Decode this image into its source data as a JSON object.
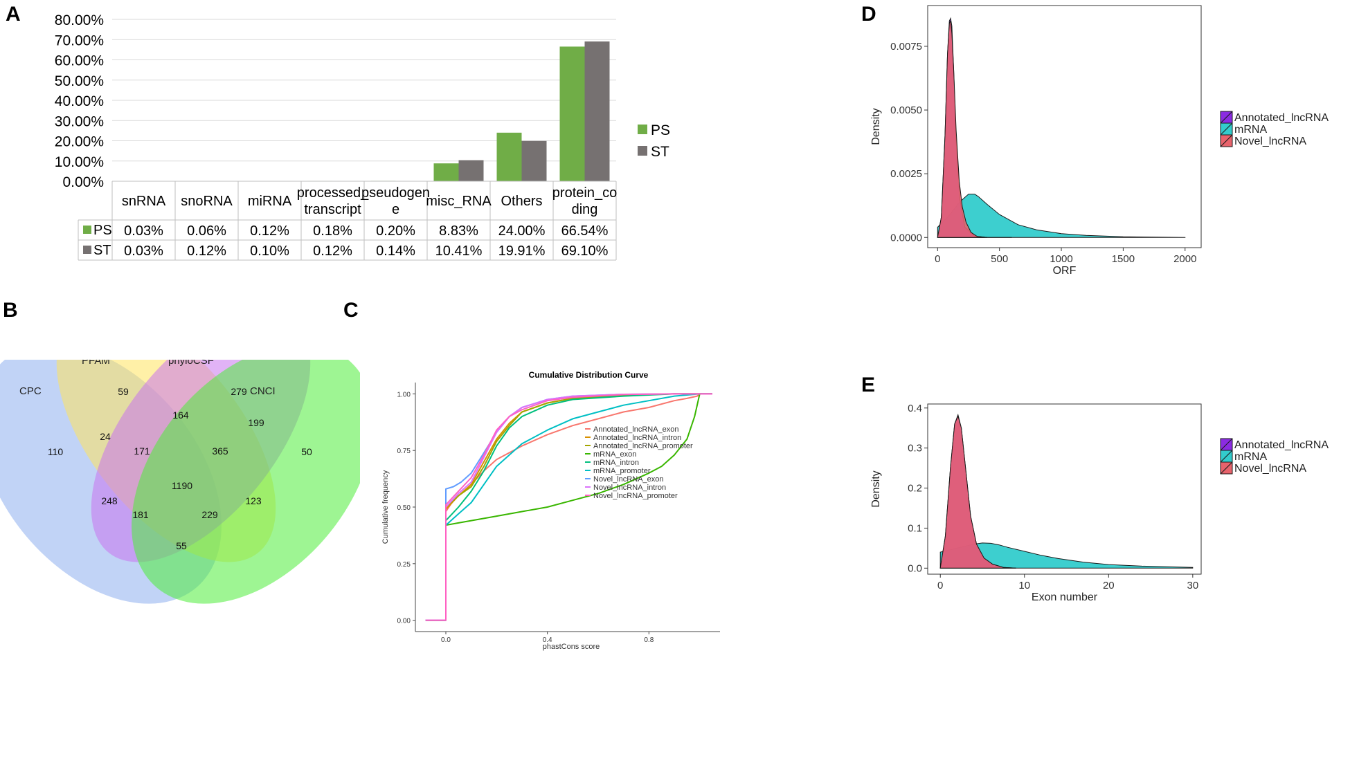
{
  "panel_labels": [
    "A",
    "B",
    "C",
    "D",
    "E"
  ],
  "chart_data": [
    {
      "panel": "A",
      "type": "bar",
      "categories": [
        "snRNA",
        "snoRNA",
        "miRNA",
        "processed_transcript",
        "pseudogene",
        "misc_RNA",
        "Others",
        "protein_coding"
      ],
      "category_lines": [
        [
          "snRNA"
        ],
        [
          "snoRNA"
        ],
        [
          "miRNA"
        ],
        [
          "processed_",
          "transcript"
        ],
        [
          "pseudogen",
          "e"
        ],
        [
          "misc_RNA"
        ],
        [
          "Others"
        ],
        [
          "protein_co",
          "ding"
        ]
      ],
      "series": [
        {
          "name": "PS",
          "color": "#70ad47",
          "values": [
            0.03,
            0.06,
            0.12,
            0.18,
            0.2,
            8.83,
            24.0,
            66.54
          ],
          "labels": [
            "0.03%",
            "0.06%",
            "0.12%",
            "0.18%",
            "0.20%",
            "8.83%",
            "24.00%",
            "66.54%"
          ]
        },
        {
          "name": "ST",
          "color": "#767171",
          "values": [
            0.03,
            0.12,
            0.1,
            0.12,
            0.14,
            10.41,
            19.91,
            69.1
          ],
          "labels": [
            "0.03%",
            "0.12%",
            "0.10%",
            "0.12%",
            "0.14%",
            "10.41%",
            "19.91%",
            "69.10%"
          ]
        }
      ],
      "ylim": [
        0,
        80
      ],
      "yticks": [
        "0.00%",
        "10.00%",
        "20.00%",
        "30.00%",
        "40.00%",
        "50.00%",
        "60.00%",
        "70.00%",
        "80.00%"
      ],
      "legend": "right"
    },
    {
      "panel": "B",
      "type": "venn",
      "sets": [
        {
          "name": "CPC",
          "color": "#8eaeee"
        },
        {
          "name": "PFAM",
          "color": "#ffe35f"
        },
        {
          "name": "phyloCSF",
          "color": "#c875ef"
        },
        {
          "name": "CNCI",
          "color": "#4eec3a"
        }
      ],
      "regions": [
        {
          "sets": "CPC",
          "value": "110"
        },
        {
          "sets": "PFAM",
          "value": "59"
        },
        {
          "sets": "phyloCSF",
          "value": "279"
        },
        {
          "sets": "CNCI",
          "value": "50"
        },
        {
          "sets": "CPC&PFAM",
          "value": "24"
        },
        {
          "sets": "PFAM&phyloCSF",
          "value": "164"
        },
        {
          "sets": "phyloCSF&CNCI",
          "value": "199"
        },
        {
          "sets": "CPC&PFAM&phyloCSF",
          "value": "171"
        },
        {
          "sets": "PFAM&phyloCSF&CNCI",
          "value": "365"
        },
        {
          "sets": "all",
          "value": "1190"
        },
        {
          "sets": "CPC&phyloCSF",
          "value": "248"
        },
        {
          "sets": "PFAM&CNCI",
          "value": "123"
        },
        {
          "sets": "CPC&phyloCSF&CNCI",
          "value": "181"
        },
        {
          "sets": "CPC&PFAM&CNCI",
          "value": "229"
        },
        {
          "sets": "CPC&CNCI",
          "value": "55"
        }
      ]
    },
    {
      "panel": "C",
      "type": "line",
      "title": "Cumulative Distribution Curve",
      "xlabel": "phastCons score",
      "ylabel": "Cumulative frequency",
      "xlim": [
        -0.12,
        1.08
      ],
      "ylim": [
        -0.05,
        1.05
      ],
      "xticks": [
        {
          "v": 0.0,
          "t": "0.0"
        },
        {
          "v": 0.4,
          "t": "0.4"
        },
        {
          "v": 0.8,
          "t": "0.8"
        }
      ],
      "yticks": [
        {
          "v": 0.0,
          "t": "0.00"
        },
        {
          "v": 0.25,
          "t": "0.25"
        },
        {
          "v": 0.5,
          "t": "0.50"
        },
        {
          "v": 0.75,
          "t": "0.75"
        },
        {
          "v": 1.0,
          "t": "1.00"
        }
      ],
      "series": [
        {
          "name": "Annotated_lncRNA_exon",
          "color": "#f8766d",
          "x": [
            -0.08,
            0,
            0,
            0.03,
            0.07,
            0.1,
            0.15,
            0.2,
            0.3,
            0.4,
            0.5,
            0.6,
            0.7,
            0.8,
            0.9,
            0.95,
            0.99,
            1.0,
            1.05
          ],
          "y": [
            0,
            0,
            0.48,
            0.53,
            0.57,
            0.6,
            0.66,
            0.71,
            0.77,
            0.82,
            0.86,
            0.89,
            0.92,
            0.94,
            0.97,
            0.98,
            0.99,
            1.0,
            1.0
          ]
        },
        {
          "name": "Annotated_lncRNA_intron",
          "color": "#d89000",
          "x": [
            -0.08,
            0,
            0,
            0.05,
            0.1,
            0.15,
            0.2,
            0.25,
            0.3,
            0.4,
            0.5,
            0.7,
            0.9,
            1.0,
            1.05
          ],
          "y": [
            0,
            0,
            0.49,
            0.55,
            0.6,
            0.7,
            0.8,
            0.87,
            0.92,
            0.96,
            0.98,
            0.995,
            1.0,
            1.0,
            1.0
          ]
        },
        {
          "name": "Annotated_lncRNA_promoter",
          "color": "#a3a500",
          "x": [
            -0.08,
            0,
            0,
            0.05,
            0.1,
            0.15,
            0.2,
            0.25,
            0.3,
            0.4,
            0.5,
            0.7,
            0.9,
            1.0,
            1.05
          ],
          "y": [
            0,
            0,
            0.5,
            0.55,
            0.59,
            0.68,
            0.79,
            0.86,
            0.92,
            0.96,
            0.98,
            0.995,
            1.0,
            1.0,
            1.0
          ]
        },
        {
          "name": "mRNA_exon",
          "color": "#39b600",
          "x": [
            -0.08,
            0,
            0,
            0.05,
            0.1,
            0.2,
            0.3,
            0.4,
            0.5,
            0.6,
            0.7,
            0.8,
            0.85,
            0.9,
            0.95,
            0.98,
            1.0,
            1.05
          ],
          "y": [
            0,
            0,
            0.42,
            0.43,
            0.44,
            0.46,
            0.48,
            0.5,
            0.53,
            0.56,
            0.6,
            0.65,
            0.68,
            0.73,
            0.8,
            0.9,
            1.0,
            1.0
          ]
        },
        {
          "name": "mRNA_intron",
          "color": "#00bf7d",
          "x": [
            -0.08,
            0,
            0,
            0.05,
            0.1,
            0.15,
            0.2,
            0.25,
            0.3,
            0.4,
            0.5,
            0.7,
            0.9,
            1.0,
            1.05
          ],
          "y": [
            0,
            0,
            0.44,
            0.5,
            0.57,
            0.66,
            0.77,
            0.85,
            0.9,
            0.95,
            0.975,
            0.99,
            1.0,
            1.0,
            1.0
          ]
        },
        {
          "name": "mRNA_promoter",
          "color": "#00bfc4",
          "x": [
            -0.08,
            0,
            0,
            0.05,
            0.1,
            0.15,
            0.2,
            0.3,
            0.4,
            0.5,
            0.6,
            0.7,
            0.8,
            0.9,
            1.0,
            1.05
          ],
          "y": [
            0,
            0,
            0.42,
            0.47,
            0.52,
            0.6,
            0.68,
            0.78,
            0.84,
            0.89,
            0.92,
            0.95,
            0.97,
            0.99,
            1.0,
            1.0
          ]
        },
        {
          "name": "Novel_lncRNA_exon",
          "color": "#619cff",
          "x": [
            -0.08,
            0,
            0,
            0.03,
            0.06,
            0.1,
            0.15,
            0.2,
            0.25,
            0.3,
            0.4,
            0.5,
            0.7,
            0.9,
            1.0,
            1.05
          ],
          "y": [
            0,
            0,
            0.58,
            0.59,
            0.61,
            0.65,
            0.74,
            0.83,
            0.9,
            0.94,
            0.975,
            0.99,
            0.998,
            1.0,
            1.0,
            1.0
          ]
        },
        {
          "name": "Novel_lncRNA_intron",
          "color": "#db72fb",
          "x": [
            -0.08,
            0,
            0,
            0.05,
            0.1,
            0.15,
            0.2,
            0.25,
            0.3,
            0.4,
            0.5,
            0.7,
            0.9,
            1.0,
            1.05
          ],
          "y": [
            0,
            0,
            0.5,
            0.56,
            0.61,
            0.72,
            0.83,
            0.9,
            0.94,
            0.975,
            0.99,
            0.998,
            1.0,
            1.0,
            1.0
          ]
        },
        {
          "name": "Novel_lncRNA_promoter",
          "color": "#ff61c3",
          "x": [
            -0.08,
            0,
            0,
            0.05,
            0.1,
            0.15,
            0.2,
            0.25,
            0.3,
            0.4,
            0.5,
            0.7,
            0.9,
            1.0,
            1.05
          ],
          "y": [
            0,
            0,
            0.51,
            0.57,
            0.63,
            0.73,
            0.84,
            0.9,
            0.93,
            0.97,
            0.985,
            0.997,
            1.0,
            1.0,
            1.0
          ]
        }
      ]
    },
    {
      "panel": "D",
      "type": "area",
      "xlabel": "ORF",
      "ylabel": "Density",
      "xlim": [
        -80,
        2130
      ],
      "ylim": [
        -0.0004,
        0.0091
      ],
      "xticks": [
        {
          "v": 0,
          "t": "0"
        },
        {
          "v": 500,
          "t": "500"
        },
        {
          "v": 1000,
          "t": "1000"
        },
        {
          "v": 1500,
          "t": "1500"
        },
        {
          "v": 2000,
          "t": "2000"
        }
      ],
      "yticks": [
        {
          "v": 0,
          "t": "0.0000"
        },
        {
          "v": 0.0025,
          "t": "0.0025"
        },
        {
          "v": 0.005,
          "t": "0.0050"
        },
        {
          "v": 0.0075,
          "t": "0.0075"
        }
      ],
      "series": [
        {
          "name": "Annotated_lncRNA",
          "color": "#8b2be2",
          "x": [
            0,
            30,
            60,
            80,
            95,
            105,
            115,
            130,
            150,
            180,
            220,
            300,
            400,
            600
          ],
          "y": [
            0,
            0.0008,
            0.004,
            0.0072,
            0.0085,
            0.0086,
            0.0083,
            0.0066,
            0.0038,
            0.0015,
            0.0004,
            5e-05,
            0,
            0
          ]
        },
        {
          "name": "mRNA",
          "color": "#33cccc",
          "x": [
            0,
            40,
            100,
            180,
            250,
            300,
            330,
            400,
            500,
            650,
            800,
            1000,
            1200,
            1500,
            1800,
            2000
          ],
          "y": [
            0.0004,
            0.0006,
            0.0009,
            0.0014,
            0.0017,
            0.0017,
            0.0016,
            0.0013,
            0.0009,
            0.0005,
            0.0003,
            0.00015,
            8e-05,
            3e-05,
            1e-05,
            3e-06
          ]
        },
        {
          "name": "Novel_lncRNA",
          "color": "#e8636c",
          "x": [
            0,
            30,
            60,
            80,
            95,
            105,
            115,
            130,
            150,
            175,
            200,
            230,
            270,
            320,
            400
          ],
          "y": [
            0,
            0.0008,
            0.004,
            0.0072,
            0.0084,
            0.0085,
            0.008,
            0.0066,
            0.0042,
            0.0022,
            0.0012,
            0.0006,
            0.0002,
            4e-05,
            0
          ]
        }
      ],
      "legend": "right"
    },
    {
      "panel": "E",
      "type": "area",
      "xlabel": "Exon number",
      "ylabel": "Density",
      "xlim": [
        -1.5,
        31
      ],
      "ylim": [
        -0.015,
        0.41
      ],
      "xticks": [
        {
          "v": 0,
          "t": "0"
        },
        {
          "v": 10,
          "t": "10"
        },
        {
          "v": 20,
          "t": "20"
        },
        {
          "v": 30,
          "t": "30"
        }
      ],
      "yticks": [
        {
          "v": 0,
          "t": "0.0"
        },
        {
          "v": 0.1,
          "t": "0.1"
        },
        {
          "v": 0.2,
          "t": "0.2"
        },
        {
          "v": 0.3,
          "t": "0.3"
        },
        {
          "v": 0.4,
          "t": "0.4"
        }
      ],
      "series": [
        {
          "name": "Annotated_lncRNA",
          "color": "#8b2be2",
          "x": [
            0,
            0.6,
            1.2,
            1.7,
            2.1,
            2.5,
            3.0,
            3.6,
            4.3,
            5.2,
            6.2,
            7.5,
            9
          ],
          "y": [
            0,
            0.08,
            0.25,
            0.36,
            0.383,
            0.35,
            0.25,
            0.13,
            0.06,
            0.025,
            0.01,
            0.002,
            0
          ]
        },
        {
          "name": "mRNA",
          "color": "#33cccc",
          "x": [
            0,
            1,
            2,
            3,
            4,
            5,
            6,
            7,
            8,
            10,
            12,
            14,
            17,
            20,
            24,
            28,
            30
          ],
          "y": [
            0.04,
            0.045,
            0.05,
            0.055,
            0.06,
            0.063,
            0.062,
            0.058,
            0.052,
            0.042,
            0.032,
            0.024,
            0.015,
            0.009,
            0.005,
            0.003,
            0.002
          ]
        },
        {
          "name": "Novel_lncRNA",
          "color": "#e8636c",
          "x": [
            0,
            0.6,
            1.2,
            1.7,
            2.1,
            2.5,
            3.0,
            3.6,
            4.3,
            5.2,
            6.2,
            7.5,
            9
          ],
          "y": [
            0,
            0.08,
            0.25,
            0.36,
            0.38,
            0.35,
            0.25,
            0.13,
            0.06,
            0.025,
            0.01,
            0.002,
            0
          ]
        }
      ],
      "legend": "right"
    }
  ]
}
